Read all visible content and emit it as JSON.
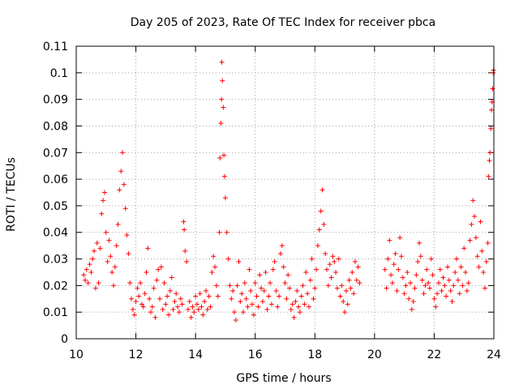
{
  "chart_data": {
    "type": "scatter",
    "title": "Day 205 of 2023, Rate Of TEC Index for receiver pbca",
    "xlabel": "GPS time / hours",
    "ylabel": "ROTI / TECUs",
    "xlim": [
      10,
      24
    ],
    "ylim": [
      0,
      0.11
    ],
    "xticks": [
      10,
      12,
      14,
      16,
      18,
      20,
      22,
      24
    ],
    "xtick_labels": [
      "10",
      "12",
      "14",
      "16",
      "18",
      "20",
      "22",
      "24"
    ],
    "yticks": [
      0,
      0.01,
      0.02,
      0.03,
      0.04,
      0.05,
      0.06,
      0.07,
      0.08,
      0.09,
      0.1,
      0.11
    ],
    "ytick_labels": [
      "0",
      "0.01",
      "0.02",
      "0.03",
      "0.04",
      "0.05",
      "0.06",
      "0.07",
      "0.08",
      "0.09",
      "0.1",
      "0.11"
    ],
    "grid": true,
    "marker": "+",
    "color": "#ff0000",
    "series": [
      {
        "name": "ROTI",
        "points": [
          [
            10.25,
            0.024
          ],
          [
            10.3,
            0.022
          ],
          [
            10.35,
            0.026
          ],
          [
            10.4,
            0.021
          ],
          [
            10.45,
            0.028
          ],
          [
            10.5,
            0.025
          ],
          [
            10.55,
            0.03
          ],
          [
            10.6,
            0.033
          ],
          [
            10.65,
            0.019
          ],
          [
            10.7,
            0.036
          ],
          [
            10.75,
            0.021
          ],
          [
            10.8,
            0.034
          ],
          [
            10.85,
            0.047
          ],
          [
            10.9,
            0.052
          ],
          [
            10.95,
            0.055
          ],
          [
            11.0,
            0.04
          ],
          [
            11.05,
            0.029
          ],
          [
            11.1,
            0.037
          ],
          [
            11.15,
            0.031
          ],
          [
            11.2,
            0.025
          ],
          [
            11.25,
            0.02
          ],
          [
            11.3,
            0.027
          ],
          [
            11.35,
            0.035
          ],
          [
            11.4,
            0.043
          ],
          [
            11.45,
            0.056
          ],
          [
            11.5,
            0.063
          ],
          [
            11.55,
            0.07
          ],
          [
            11.6,
            0.058
          ],
          [
            11.65,
            0.049
          ],
          [
            11.7,
            0.039
          ],
          [
            11.75,
            0.032
          ],
          [
            11.8,
            0.021
          ],
          [
            11.85,
            0.015
          ],
          [
            11.9,
            0.011
          ],
          [
            11.95,
            0.009
          ],
          [
            12.0,
            0.014
          ],
          [
            12.05,
            0.019
          ],
          [
            12.1,
            0.016
          ],
          [
            12.15,
            0.021
          ],
          [
            12.2,
            0.013
          ],
          [
            12.25,
            0.012
          ],
          [
            12.3,
            0.017
          ],
          [
            12.35,
            0.025
          ],
          [
            12.4,
            0.034
          ],
          [
            12.45,
            0.015
          ],
          [
            12.5,
            0.01
          ],
          [
            12.55,
            0.012
          ],
          [
            12.6,
            0.019
          ],
          [
            12.65,
            0.008
          ],
          [
            12.7,
            0.022
          ],
          [
            12.75,
            0.026
          ],
          [
            12.8,
            0.015
          ],
          [
            12.85,
            0.027
          ],
          [
            12.9,
            0.011
          ],
          [
            12.95,
            0.021
          ],
          [
            13.0,
            0.013
          ],
          [
            13.05,
            0.016
          ],
          [
            13.1,
            0.009
          ],
          [
            13.15,
            0.018
          ],
          [
            13.2,
            0.023
          ],
          [
            13.25,
            0.011
          ],
          [
            13.3,
            0.014
          ],
          [
            13.35,
            0.017
          ],
          [
            13.4,
            0.012
          ],
          [
            13.45,
            0.01
          ],
          [
            13.5,
            0.015
          ],
          [
            13.55,
            0.013
          ],
          [
            13.6,
            0.044
          ],
          [
            13.62,
            0.041
          ],
          [
            13.65,
            0.033
          ],
          [
            13.7,
            0.029
          ],
          [
            13.75,
            0.011
          ],
          [
            13.8,
            0.014
          ],
          [
            13.85,
            0.008
          ],
          [
            13.9,
            0.012
          ],
          [
            13.95,
            0.01
          ],
          [
            14.0,
            0.016
          ],
          [
            14.05,
            0.013
          ],
          [
            14.1,
            0.011
          ],
          [
            14.15,
            0.017
          ],
          [
            14.2,
            0.012
          ],
          [
            14.25,
            0.009
          ],
          [
            14.3,
            0.014
          ],
          [
            14.35,
            0.018
          ],
          [
            14.4,
            0.011
          ],
          [
            14.45,
            0.016
          ],
          [
            14.5,
            0.012
          ],
          [
            14.55,
            0.025
          ],
          [
            14.6,
            0.031
          ],
          [
            14.65,
            0.027
          ],
          [
            14.7,
            0.02
          ],
          [
            14.75,
            0.016
          ],
          [
            14.8,
            0.04
          ],
          [
            14.82,
            0.068
          ],
          [
            14.85,
            0.081
          ],
          [
            14.87,
            0.09
          ],
          [
            14.88,
            0.104
          ],
          [
            14.9,
            0.097
          ],
          [
            14.93,
            0.087
          ],
          [
            14.95,
            0.069
          ],
          [
            14.97,
            0.061
          ],
          [
            15.0,
            0.053
          ],
          [
            15.05,
            0.04
          ],
          [
            15.1,
            0.03
          ],
          [
            15.15,
            0.02
          ],
          [
            15.2,
            0.015
          ],
          [
            15.25,
            0.018
          ],
          [
            15.3,
            0.01
          ],
          [
            15.35,
            0.007
          ],
          [
            15.4,
            0.02
          ],
          [
            15.45,
            0.029
          ],
          [
            15.5,
            0.014
          ],
          [
            15.55,
            0.017
          ],
          [
            15.6,
            0.01
          ],
          [
            15.65,
            0.021
          ],
          [
            15.7,
            0.015
          ],
          [
            15.75,
            0.012
          ],
          [
            15.8,
            0.026
          ],
          [
            15.85,
            0.018
          ],
          [
            15.9,
            0.013
          ],
          [
            15.95,
            0.009
          ],
          [
            16.0,
            0.021
          ],
          [
            16.05,
            0.016
          ],
          [
            16.1,
            0.012
          ],
          [
            16.15,
            0.024
          ],
          [
            16.2,
            0.019
          ],
          [
            16.25,
            0.014
          ],
          [
            16.3,
            0.018
          ],
          [
            16.35,
            0.025
          ],
          [
            16.4,
            0.011
          ],
          [
            16.45,
            0.016
          ],
          [
            16.5,
            0.021
          ],
          [
            16.55,
            0.013
          ],
          [
            16.6,
            0.026
          ],
          [
            16.65,
            0.029
          ],
          [
            16.7,
            0.018
          ],
          [
            16.75,
            0.012
          ],
          [
            16.8,
            0.016
          ],
          [
            16.85,
            0.032
          ],
          [
            16.9,
            0.035
          ],
          [
            16.95,
            0.027
          ],
          [
            17.0,
            0.021
          ],
          [
            17.05,
            0.015
          ],
          [
            17.1,
            0.024
          ],
          [
            17.15,
            0.019
          ],
          [
            17.2,
            0.011
          ],
          [
            17.25,
            0.013
          ],
          [
            17.3,
            0.008
          ],
          [
            17.35,
            0.014
          ],
          [
            17.4,
            0.018
          ],
          [
            17.45,
            0.012
          ],
          [
            17.5,
            0.01
          ],
          [
            17.55,
            0.016
          ],
          [
            17.6,
            0.02
          ],
          [
            17.65,
            0.013
          ],
          [
            17.7,
            0.025
          ],
          [
            17.75,
            0.017
          ],
          [
            17.8,
            0.012
          ],
          [
            17.85,
            0.022
          ],
          [
            17.9,
            0.03
          ],
          [
            17.95,
            0.015
          ],
          [
            18.0,
            0.019
          ],
          [
            18.05,
            0.026
          ],
          [
            18.1,
            0.035
          ],
          [
            18.15,
            0.041
          ],
          [
            18.2,
            0.048
          ],
          [
            18.25,
            0.056
          ],
          [
            18.3,
            0.043
          ],
          [
            18.35,
            0.032
          ],
          [
            18.4,
            0.026
          ],
          [
            18.45,
            0.02
          ],
          [
            18.5,
            0.028
          ],
          [
            18.55,
            0.023
          ],
          [
            18.6,
            0.031
          ],
          [
            18.65,
            0.029
          ],
          [
            18.7,
            0.025
          ],
          [
            18.75,
            0.019
          ],
          [
            18.8,
            0.03
          ],
          [
            18.85,
            0.016
          ],
          [
            18.9,
            0.02
          ],
          [
            18.95,
            0.014
          ],
          [
            19.0,
            0.01
          ],
          [
            19.05,
            0.018
          ],
          [
            19.1,
            0.013
          ],
          [
            19.15,
            0.022
          ],
          [
            19.2,
            0.019
          ],
          [
            19.25,
            0.025
          ],
          [
            19.3,
            0.017
          ],
          [
            19.35,
            0.029
          ],
          [
            19.4,
            0.022
          ],
          [
            19.45,
            0.027
          ],
          [
            19.5,
            0.021
          ],
          [
            20.35,
            0.026
          ],
          [
            20.4,
            0.019
          ],
          [
            20.45,
            0.03
          ],
          [
            20.5,
            0.037
          ],
          [
            20.55,
            0.024
          ],
          [
            20.6,
            0.021
          ],
          [
            20.65,
            0.028
          ],
          [
            20.7,
            0.032
          ],
          [
            20.75,
            0.018
          ],
          [
            20.8,
            0.026
          ],
          [
            20.85,
            0.038
          ],
          [
            20.9,
            0.031
          ],
          [
            20.95,
            0.023
          ],
          [
            21.0,
            0.017
          ],
          [
            21.05,
            0.02
          ],
          [
            21.1,
            0.025
          ],
          [
            21.15,
            0.015
          ],
          [
            21.2,
            0.021
          ],
          [
            21.25,
            0.011
          ],
          [
            21.3,
            0.014
          ],
          [
            21.35,
            0.019
          ],
          [
            21.4,
            0.024
          ],
          [
            21.45,
            0.029
          ],
          [
            21.5,
            0.036
          ],
          [
            21.55,
            0.031
          ],
          [
            21.6,
            0.022
          ],
          [
            21.65,
            0.017
          ],
          [
            21.7,
            0.02
          ],
          [
            21.75,
            0.026
          ],
          [
            21.8,
            0.021
          ],
          [
            21.85,
            0.019
          ],
          [
            21.9,
            0.03
          ],
          [
            21.95,
            0.024
          ],
          [
            22.0,
            0.015
          ],
          [
            22.05,
            0.012
          ],
          [
            22.1,
            0.017
          ],
          [
            22.15,
            0.021
          ],
          [
            22.2,
            0.026
          ],
          [
            22.25,
            0.018
          ],
          [
            22.3,
            0.023
          ],
          [
            22.35,
            0.02
          ],
          [
            22.4,
            0.016
          ],
          [
            22.45,
            0.027
          ],
          [
            22.5,
            0.022
          ],
          [
            22.55,
            0.018
          ],
          [
            22.6,
            0.014
          ],
          [
            22.65,
            0.02
          ],
          [
            22.7,
            0.025
          ],
          [
            22.75,
            0.03
          ],
          [
            22.8,
            0.022
          ],
          [
            22.85,
            0.017
          ],
          [
            22.9,
            0.027
          ],
          [
            22.95,
            0.02
          ],
          [
            23.0,
            0.034
          ],
          [
            23.05,
            0.025
          ],
          [
            23.1,
            0.018
          ],
          [
            23.15,
            0.021
          ],
          [
            23.2,
            0.037
          ],
          [
            23.25,
            0.043
          ],
          [
            23.3,
            0.052
          ],
          [
            23.35,
            0.046
          ],
          [
            23.4,
            0.038
          ],
          [
            23.45,
            0.031
          ],
          [
            23.5,
            0.027
          ],
          [
            23.55,
            0.044
          ],
          [
            23.6,
            0.033
          ],
          [
            23.65,
            0.025
          ],
          [
            23.7,
            0.019
          ],
          [
            23.75,
            0.029
          ],
          [
            23.8,
            0.036
          ],
          [
            23.82,
            0.061
          ],
          [
            23.85,
            0.067
          ],
          [
            23.87,
            0.07
          ],
          [
            23.9,
            0.079
          ],
          [
            23.92,
            0.086
          ],
          [
            23.94,
            0.089
          ],
          [
            23.96,
            0.094
          ],
          [
            23.98,
            0.1
          ],
          [
            23.99,
            0.101
          ]
        ]
      }
    ]
  }
}
